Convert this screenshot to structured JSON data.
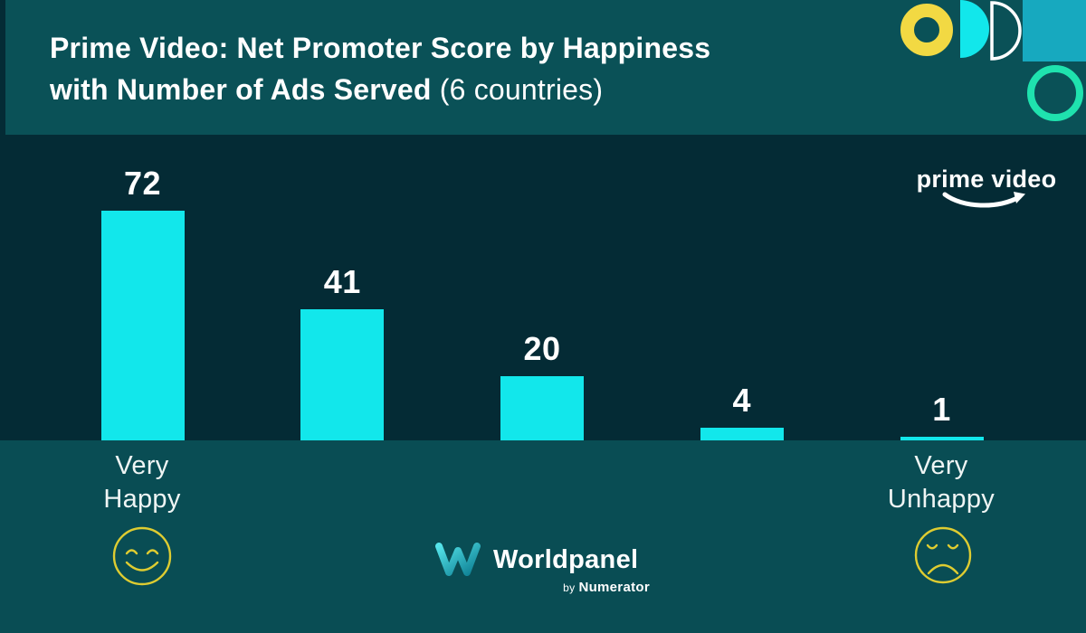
{
  "colors": {
    "header_bg": "#0A5157",
    "band_bg": "#094D54",
    "chart_bg": "#042B35",
    "bar_cyan": "#12E7EB",
    "accent_yellow": "#F2D943",
    "smiley_yellow": "#DECC31",
    "decor_teal_square": "#17A9BF",
    "decor_green_ring": "#1FE2AE",
    "text_white": "#FFFFFF"
  },
  "header": {
    "title_line1": "Prime Video: Net Promoter Score by Happiness",
    "title_line2_bold": "with Number of Ads Served",
    "title_line2_light": "(6 countries)",
    "decor_icons": [
      "yellow-ring-icon",
      "cyan-half-disc-icon",
      "white-half-disc-outline-icon",
      "teal-square-icon",
      "green-ring-icon"
    ]
  },
  "prime_video_logo": {
    "text": "prime video",
    "icon": "amazon-smile-arrow-icon"
  },
  "worldpanel_logo": {
    "icon": "worldpanel-w-icon",
    "name": "Worldpanel",
    "byline_prefix": "by",
    "byline_name": "Numerator"
  },
  "chart_data": {
    "type": "bar",
    "title": "Prime Video: Net Promoter Score by Happiness with Number of Ads Served (6 countries)",
    "categories": [
      "Very Happy",
      "",
      "",
      "",
      "Very Unhappy"
    ],
    "values": [
      72,
      41,
      20,
      4,
      1
    ],
    "data_labels": [
      "72",
      "41",
      "20",
      "4",
      "1"
    ],
    "bar_color": "#12E7EB",
    "ylim": [
      0,
      80
    ],
    "grid": false,
    "legend": false,
    "axes_shown": false,
    "x_axis_labels": [
      {
        "bar_index": 0,
        "lines": [
          "Very",
          "Happy"
        ],
        "icon": "happy-face-icon"
      },
      {
        "bar_index": 4,
        "lines": [
          "Very",
          "Unhappy"
        ],
        "icon": "sad-face-icon"
      }
    ]
  }
}
